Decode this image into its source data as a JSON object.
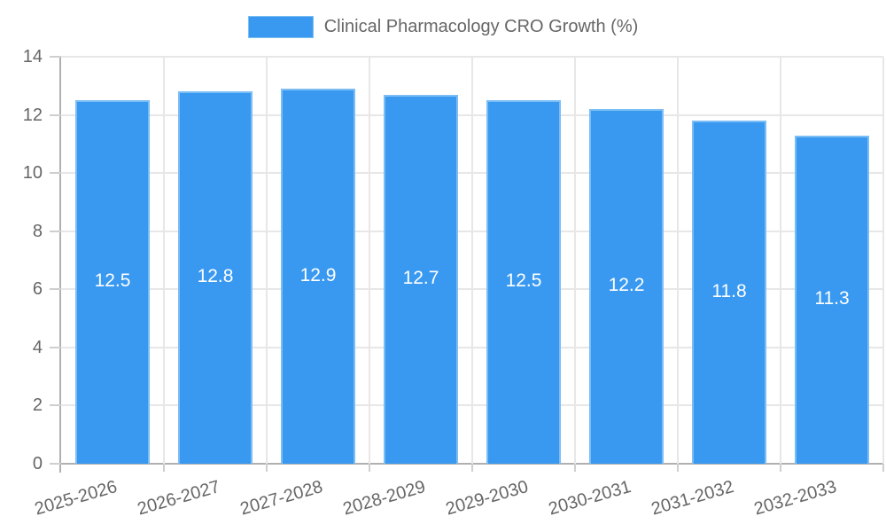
{
  "legend": {
    "label": "Clinical Pharmacology CRO Growth (%)"
  },
  "chart_data": {
    "type": "bar",
    "title": "Clinical Pharmacology CRO Growth (%)",
    "categories": [
      "2025-2026",
      "2026-2027",
      "2027-2028",
      "2028-2029",
      "2029-2030",
      "2030-2031",
      "2031-2032",
      "2032-2033"
    ],
    "values": [
      12.5,
      12.8,
      12.9,
      12.7,
      12.5,
      12.2,
      11.8,
      11.3
    ],
    "value_labels": [
      "12.5",
      "12.8",
      "12.9",
      "12.7",
      "12.5",
      "12.2",
      "11.8",
      "11.3"
    ],
    "xlabel": "",
    "ylabel": "",
    "ylim": [
      0,
      14
    ],
    "yticks": [
      0,
      2,
      4,
      6,
      8,
      10,
      12,
      14
    ],
    "grid": true,
    "legend_position": "top",
    "bar_color": "#3999f0",
    "bar_border_color": "#7bbdf5",
    "value_label_color": "#ffffff",
    "axis_text_color": "#666666",
    "gridline_color": "#e7e7e7",
    "axis_line_color": "#b0b0b0"
  }
}
